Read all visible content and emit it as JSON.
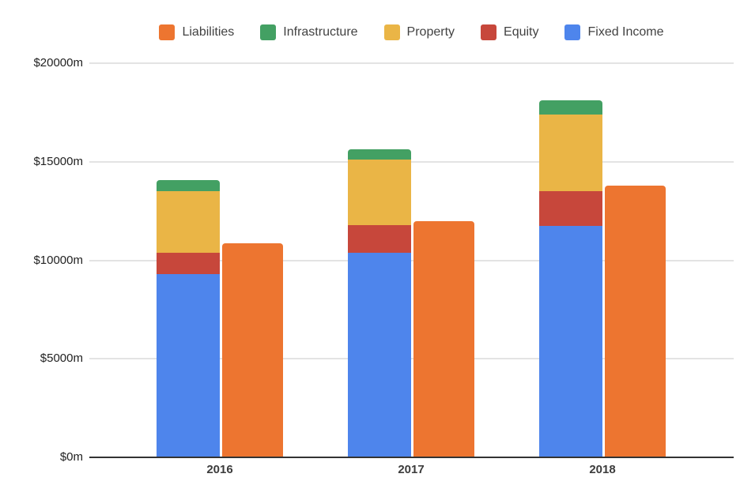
{
  "page": {
    "background": "#ffffff"
  },
  "chart_data": {
    "type": "bar",
    "variant": "stacked-assets-vs-liabilities",
    "title": "",
    "xlabel": "",
    "ylabel": "",
    "categories": [
      "2016",
      "2017",
      "2018"
    ],
    "series": [
      {
        "name": "Fixed Income",
        "color": "#4E85EC",
        "stack": "assets",
        "values": [
          9300,
          10400,
          11750
        ]
      },
      {
        "name": "Equity",
        "color": "#C7473B",
        "stack": "assets",
        "values": [
          1100,
          1400,
          1750
        ]
      },
      {
        "name": "Property",
        "color": "#EAB546",
        "stack": "assets",
        "values": [
          3100,
          3300,
          3900
        ]
      },
      {
        "name": "Infrastructure",
        "color": "#43A063",
        "stack": "assets",
        "values": [
          550,
          550,
          700
        ]
      },
      {
        "name": "Liabilities",
        "color": "#ED7530",
        "stack": "liabilities",
        "values": [
          10850,
          12000,
          13800
        ]
      }
    ],
    "legend": {
      "position": "top",
      "order": [
        "Liabilities",
        "Infrastructure",
        "Property",
        "Equity",
        "Fixed Income"
      ]
    },
    "y_axis": {
      "min": 0,
      "max": 20000,
      "ticks": [
        {
          "value": 20000,
          "label": "$20000m"
        },
        {
          "value": 15000,
          "label": "$15000m"
        },
        {
          "value": 10000,
          "label": "$10000m"
        },
        {
          "value": 5000,
          "label": "$5000m"
        },
        {
          "value": 0,
          "label": "$0m"
        }
      ]
    },
    "x_axis": {
      "labels": [
        "2016",
        "2017",
        "2018"
      ]
    },
    "grid": true,
    "colors": {
      "gridline": "#e3e3e3",
      "axis_line": "#333333",
      "y_tick_text": "#222222",
      "x_tick_text": "#3c3c3c",
      "legend_text": "#424242",
      "background": "#ffffff"
    }
  }
}
